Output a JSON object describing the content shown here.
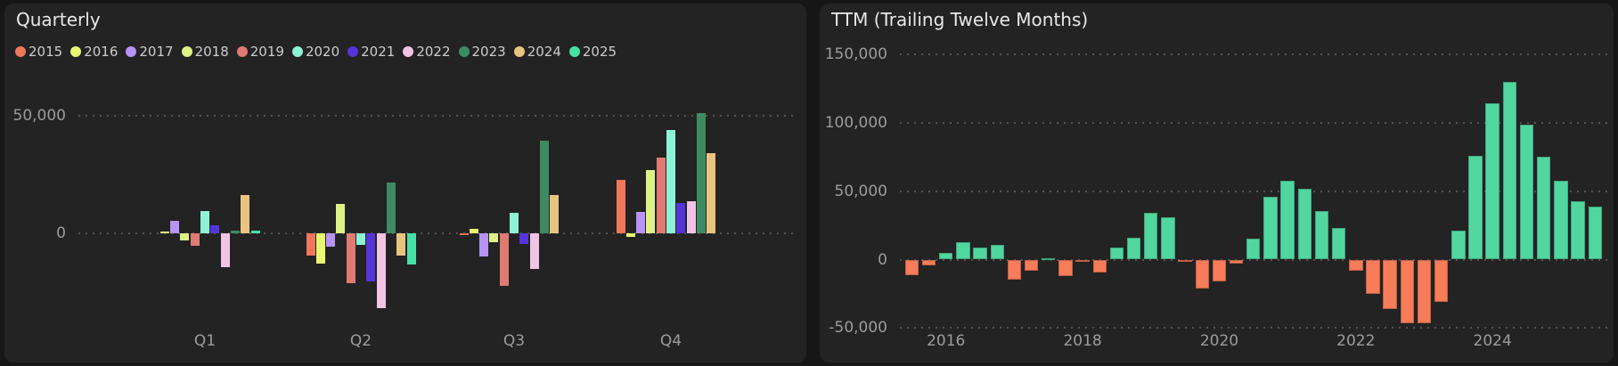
{
  "page": {
    "background": "#161616",
    "panel_background": "#232323",
    "title_color": "#e8e8e8",
    "axis_label_color": "#9c9c9c",
    "legend_text_color": "#cccccc",
    "gridline_color": "#838383"
  },
  "left_panel": {
    "title": "Quarterly",
    "chart_data": {
      "type": "bar",
      "subtype": "grouped_bar",
      "title": "Quarterly",
      "categories": [
        "Q1",
        "Q2",
        "Q3",
        "Q4"
      ],
      "yticks": [
        50000,
        0
      ],
      "ytick_labels": [
        "50,000",
        "0"
      ],
      "ylim": [
        -35000,
        56000
      ],
      "grid": "dotted-horizontal",
      "legend_position": "top",
      "series": [
        {
          "name": "2015",
          "color": "#f0785a",
          "values": [
            null,
            -9200,
            -600,
            22700
          ]
        },
        {
          "name": "2016",
          "color": "#e9f873",
          "values": [
            700,
            -12700,
            2100,
            -1250
          ]
        },
        {
          "name": "2017",
          "color": "#b793f5",
          "values": [
            5300,
            -5700,
            -9800,
            9200
          ]
        },
        {
          "name": "2018",
          "color": "#def286",
          "values": [
            -2800,
            12600,
            -3500,
            27100
          ]
        },
        {
          "name": "2019",
          "color": "#e07b74",
          "values": [
            -5000,
            -20900,
            -22000,
            32200
          ]
        },
        {
          "name": "2020",
          "color": "#8ef2d4",
          "values": [
            9500,
            -4800,
            8800,
            43800
          ]
        },
        {
          "name": "2021",
          "color": "#5535d8",
          "values": [
            3500,
            -20300,
            -4400,
            13000
          ]
        },
        {
          "name": "2022",
          "color": "#f2c4e4",
          "values": [
            -14100,
            -31500,
            -14900,
            13900
          ]
        },
        {
          "name": "2023",
          "color": "#3d8a63",
          "values": [
            1300,
            21500,
            39300,
            51300
          ]
        },
        {
          "name": "2024",
          "color": "#e9c47e",
          "values": [
            16500,
            -9450,
            16400,
            34000
          ]
        },
        {
          "name": "2025",
          "color": "#48e0a5",
          "values": [
            1300,
            -13200,
            null,
            null
          ]
        }
      ]
    }
  },
  "right_panel": {
    "title": "TTM (Trailing Twelve Months)",
    "chart_data": {
      "type": "bar",
      "subtype": "diverging_bar",
      "title": "TTM (Trailing Twelve Months)",
      "positive_color": "#52d6a0",
      "negative_color": "#f67c5a",
      "yticks": [
        150000,
        100000,
        50000,
        0,
        -50000
      ],
      "ytick_labels": [
        "150,000",
        "100,000",
        "50,000",
        "0",
        "-50,000"
      ],
      "ylim": [
        -55000,
        157000
      ],
      "grid": "dotted-horizontal",
      "x": [
        "2015-Q3",
        "2015-Q4",
        "2016-Q1",
        "2016-Q2",
        "2016-Q3",
        "2016-Q4",
        "2017-Q1",
        "2017-Q2",
        "2017-Q3",
        "2017-Q4",
        "2018-Q1",
        "2018-Q2",
        "2018-Q3",
        "2018-Q4",
        "2019-Q1",
        "2019-Q2",
        "2019-Q3",
        "2019-Q4",
        "2020-Q1",
        "2020-Q2",
        "2020-Q3",
        "2020-Q4",
        "2021-Q1",
        "2021-Q2",
        "2021-Q3",
        "2021-Q4",
        "2022-Q1",
        "2022-Q2",
        "2022-Q3",
        "2022-Q4",
        "2023-Q1",
        "2023-Q2",
        "2023-Q3",
        "2023-Q4",
        "2024-Q1",
        "2024-Q2",
        "2024-Q3",
        "2024-Q4",
        "2025-Q1",
        "2025-Q2",
        "2025-Q3"
      ],
      "values": [
        -11500,
        -4500,
        5000,
        12500,
        9000,
        11000,
        -14500,
        -8000,
        1000,
        -12000,
        -1000,
        -9500,
        9000,
        16000,
        34000,
        31000,
        -1500,
        -21000,
        -16000,
        -3000,
        15000,
        46000,
        57500,
        52000,
        35500,
        23000,
        -8000,
        -25000,
        -36500,
        -46500,
        -46500,
        -31000,
        21500,
        76000,
        114500,
        130000,
        99000,
        75000,
        57500,
        42500,
        38500
      ],
      "xticks": [
        {
          "label": "2016",
          "index": 2
        },
        {
          "label": "2018",
          "index": 10
        },
        {
          "label": "2020",
          "index": 18
        },
        {
          "label": "2022",
          "index": 26
        },
        {
          "label": "2024",
          "index": 34
        }
      ]
    }
  }
}
